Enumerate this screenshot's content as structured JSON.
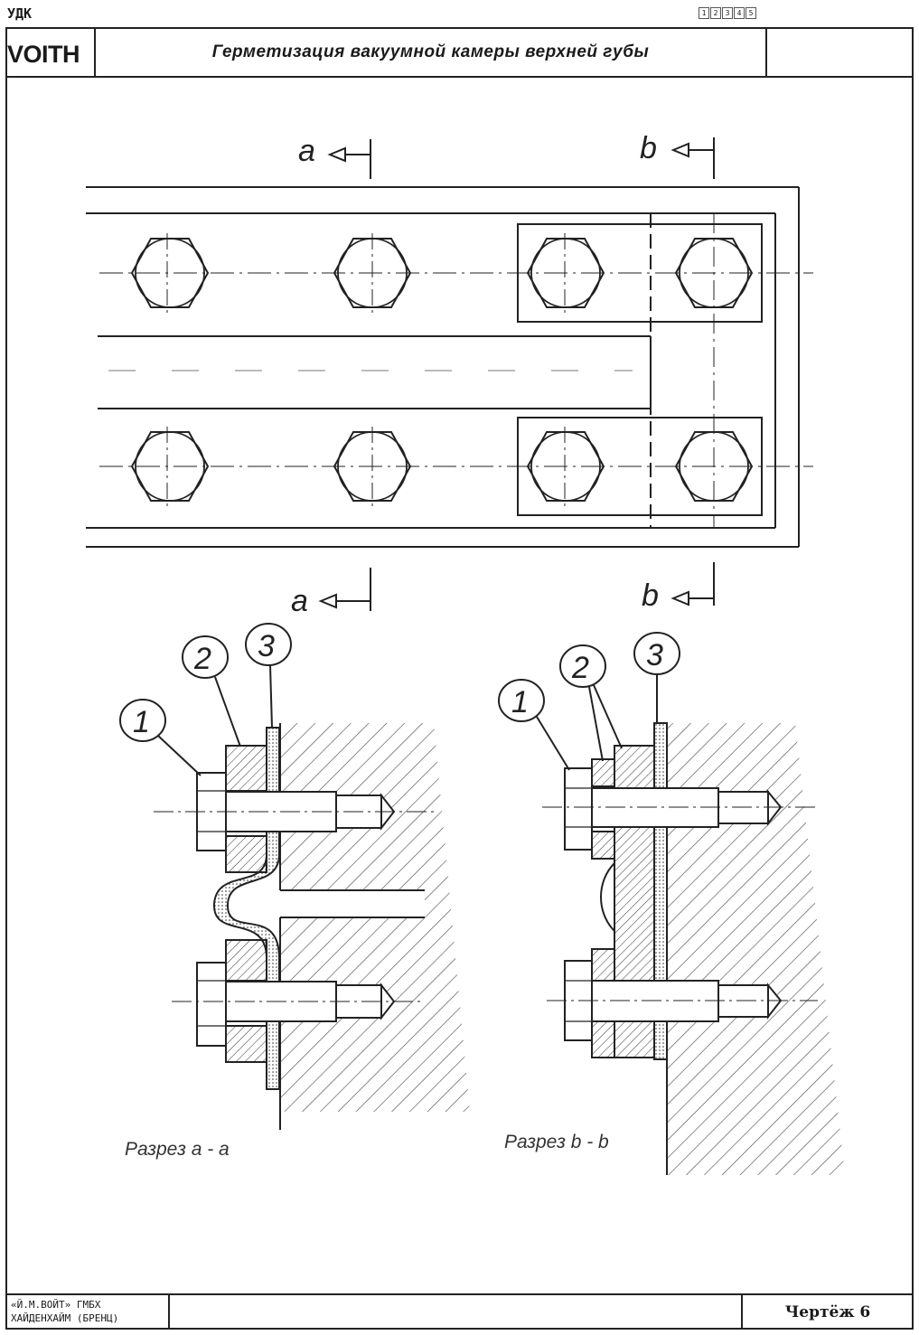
{
  "header": {
    "udk": "УДК",
    "page_marks": [
      "1",
      "2",
      "3",
      "4",
      "5"
    ],
    "brand": "VOITH",
    "title": "Герметизация вакуумной камеры верхней губы"
  },
  "drawing": {
    "section_markers": {
      "a": "a",
      "b": "b"
    },
    "callouts": [
      "1",
      "2",
      "3"
    ],
    "section_a_caption": "Разрез a - a",
    "section_b_caption": "Разрез b - b"
  },
  "footer": {
    "company_line1": "«Й.М.ВОЙТ» ГМБХ",
    "company_line2": "ХАЙДЕНХАЙМ (БРЕНЦ)",
    "drawing_number": "Чертёж 6"
  }
}
